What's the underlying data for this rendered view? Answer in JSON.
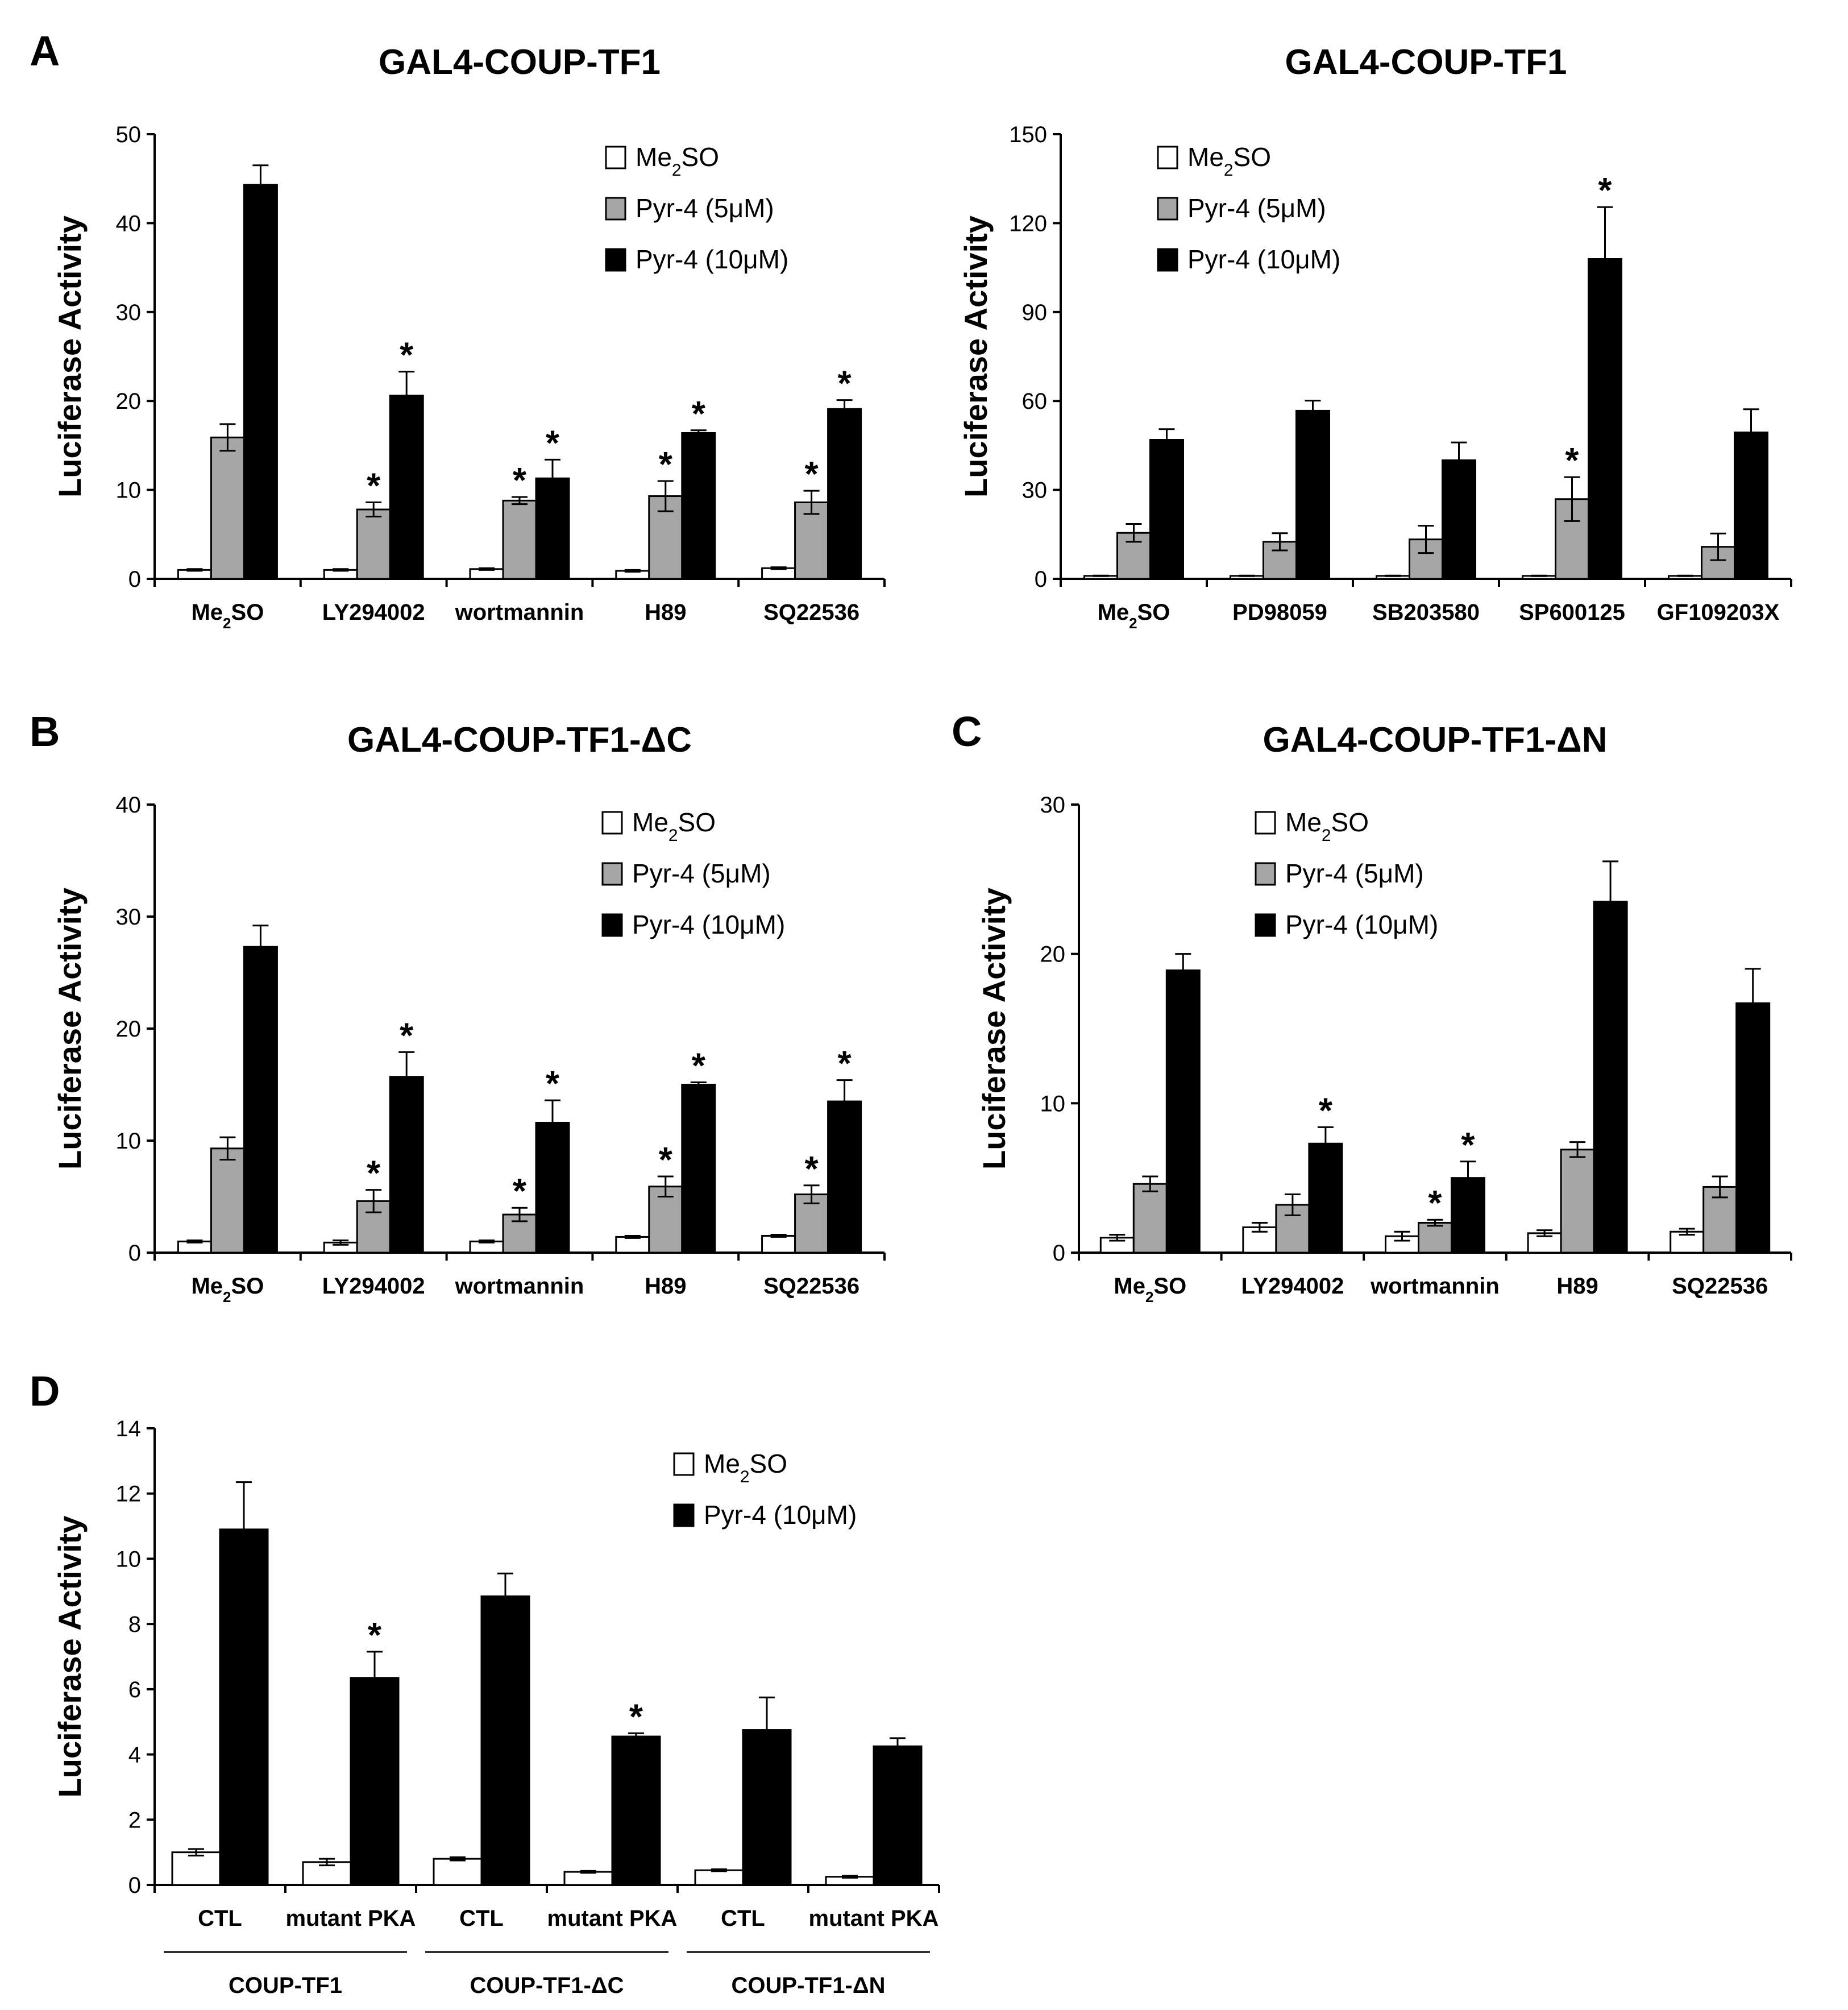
{
  "figure": {
    "colors": {
      "me2so": "#ffffff",
      "pyr5": "#a6a6a6",
      "pyr10": "#000000",
      "stroke": "#000000"
    }
  },
  "chart_data": [
    {
      "id": "A1",
      "type": "bar",
      "panel_letter": "A",
      "title": "GAL4-COUP-TF1",
      "ylabel": "Luciferase Activity",
      "ylim": [
        0,
        50
      ],
      "yticks": [
        0,
        10,
        20,
        30,
        40,
        50
      ],
      "categories": [
        "Me2SO",
        "LY294002",
        "wortmannin",
        "H89",
        "SQ22536"
      ],
      "legend_position": "top-right",
      "series": [
        {
          "name": "Me2SO",
          "values": [
            1.0,
            1.0,
            1.1,
            0.9,
            1.2
          ],
          "errors": [
            0.1,
            0.1,
            0.1,
            0.1,
            0.1
          ]
        },
        {
          "name": "Pyr-4 (5μM)",
          "values": [
            15.9,
            7.8,
            8.8,
            9.3,
            8.6
          ],
          "errors": [
            1.5,
            0.8,
            0.4,
            1.7,
            1.3
          ]
        },
        {
          "name": "Pyr-4 (10μM)",
          "values": [
            44.3,
            20.6,
            11.3,
            16.4,
            19.1
          ],
          "errors": [
            2.2,
            2.7,
            2.1,
            0.3,
            1.0
          ]
        }
      ],
      "significance": [
        {
          "category": 1,
          "series": 1,
          "label": "*"
        },
        {
          "category": 1,
          "series": 2,
          "label": "*"
        },
        {
          "category": 2,
          "series": 1,
          "label": "*"
        },
        {
          "category": 2,
          "series": 2,
          "label": "*"
        },
        {
          "category": 3,
          "series": 1,
          "label": "*"
        },
        {
          "category": 3,
          "series": 2,
          "label": "*"
        },
        {
          "category": 4,
          "series": 1,
          "label": "*"
        },
        {
          "category": 4,
          "series": 2,
          "label": "*"
        }
      ]
    },
    {
      "id": "A2",
      "type": "bar",
      "panel_letter": "",
      "title": "GAL4-COUP-TF1",
      "ylabel": "Luciferase Activity",
      "ylim": [
        0,
        150
      ],
      "yticks": [
        0,
        30,
        60,
        90,
        120,
        150
      ],
      "categories": [
        "Me2SO",
        "PD98059",
        "SB203580",
        "SP600125",
        "GF109203X"
      ],
      "legend_position": "top-left",
      "series": [
        {
          "name": "Me2SO",
          "values": [
            1.0,
            1.0,
            1.0,
            1.0,
            1.0
          ],
          "errors": [
            0.1,
            0.1,
            0.1,
            0.1,
            0.1
          ]
        },
        {
          "name": "Pyr-4 (5μM)",
          "values": [
            15.5,
            12.5,
            13.3,
            26.9,
            10.8
          ],
          "errors": [
            3.0,
            2.9,
            4.6,
            7.4,
            4.5
          ]
        },
        {
          "name": "Pyr-4 (10μM)",
          "values": [
            46.9,
            56.7,
            40.0,
            107.9,
            49.4
          ],
          "errors": [
            3.6,
            3.4,
            6.0,
            17.5,
            7.8
          ]
        }
      ],
      "significance": [
        {
          "category": 3,
          "series": 1,
          "label": "*"
        },
        {
          "category": 3,
          "series": 2,
          "label": "*"
        }
      ]
    },
    {
      "id": "B",
      "type": "bar",
      "panel_letter": "B",
      "title": "GAL4-COUP-TF1-ΔC",
      "ylabel": "Luciferase Activity",
      "ylim": [
        0,
        40
      ],
      "yticks": [
        0,
        10,
        20,
        30,
        40
      ],
      "categories": [
        "Me2SO",
        "LY294002",
        "wortmannin",
        "H89",
        "SQ22536"
      ],
      "legend_position": "top-right",
      "series": [
        {
          "name": "Me2SO",
          "values": [
            1.0,
            0.9,
            1.0,
            1.4,
            1.5
          ],
          "errors": [
            0.1,
            0.2,
            0.1,
            0.1,
            0.1
          ]
        },
        {
          "name": "Pyr-4 (5μM)",
          "values": [
            9.3,
            4.6,
            3.4,
            5.9,
            5.2
          ],
          "errors": [
            1.0,
            1.0,
            0.6,
            0.9,
            0.8
          ]
        },
        {
          "name": "Pyr-4 (10μM)",
          "values": [
            27.3,
            15.7,
            11.6,
            15.0,
            13.5
          ],
          "errors": [
            1.9,
            2.2,
            2.0,
            0.2,
            1.9
          ]
        }
      ],
      "significance": [
        {
          "category": 1,
          "series": 1,
          "label": "*"
        },
        {
          "category": 1,
          "series": 2,
          "label": "*"
        },
        {
          "category": 2,
          "series": 1,
          "label": "*"
        },
        {
          "category": 2,
          "series": 2,
          "label": "*"
        },
        {
          "category": 3,
          "series": 1,
          "label": "*"
        },
        {
          "category": 3,
          "series": 2,
          "label": "*"
        },
        {
          "category": 4,
          "series": 1,
          "label": "*"
        },
        {
          "category": 4,
          "series": 2,
          "label": "*"
        }
      ]
    },
    {
      "id": "C",
      "type": "bar",
      "panel_letter": "C",
      "title": "GAL4-COUP-TF1-ΔN",
      "ylabel": "Luciferase Activity",
      "ylim": [
        0,
        30
      ],
      "yticks": [
        0,
        10,
        20,
        30
      ],
      "categories": [
        "Me2SO",
        "LY294002",
        "wortmannin",
        "H89",
        "SQ22536"
      ],
      "legend_position": "top-left",
      "series": [
        {
          "name": "Me2SO",
          "values": [
            1.0,
            1.7,
            1.1,
            1.3,
            1.4
          ],
          "errors": [
            0.2,
            0.3,
            0.3,
            0.2,
            0.2
          ]
        },
        {
          "name": "Pyr-4 (5μM)",
          "values": [
            4.6,
            3.2,
            2.0,
            6.9,
            4.4
          ],
          "errors": [
            0.5,
            0.7,
            0.2,
            0.5,
            0.7
          ]
        },
        {
          "name": "Pyr-4 (10μM)",
          "values": [
            18.9,
            7.3,
            5.0,
            23.5,
            16.7
          ],
          "errors": [
            1.1,
            1.1,
            1.1,
            2.7,
            2.3
          ]
        }
      ],
      "significance": [
        {
          "category": 1,
          "series": 2,
          "label": "*"
        },
        {
          "category": 2,
          "series": 1,
          "label": "*"
        },
        {
          "category": 2,
          "series": 2,
          "label": "*"
        }
      ]
    },
    {
      "id": "D",
      "type": "bar",
      "panel_letter": "D",
      "title": "",
      "ylabel": "Luciferase Activity",
      "ylim": [
        0,
        14
      ],
      "yticks": [
        0,
        2,
        4,
        6,
        8,
        10,
        12,
        14
      ],
      "categories": [
        "CTL",
        "mutant PKA",
        "CTL",
        "mutant PKA",
        "CTL",
        "mutant PKA"
      ],
      "groups": [
        {
          "label": "COUP-TF1",
          "categories": [
            0,
            1
          ]
        },
        {
          "label": "COUP-TF1-ΔC",
          "categories": [
            2,
            3
          ]
        },
        {
          "label": "COUP-TF1-ΔN",
          "categories": [
            4,
            5
          ]
        }
      ],
      "legend_position": "top-right",
      "series": [
        {
          "name": "Me2SO",
          "values": [
            1.0,
            0.7,
            0.8,
            0.4,
            0.45,
            0.25
          ],
          "errors": [
            0.1,
            0.1,
            0.05,
            0.03,
            0.03,
            0.03
          ]
        },
        {
          "name": "Pyr-4 (10μM)",
          "values": [
            10.9,
            6.35,
            8.85,
            4.55,
            4.75,
            4.25
          ],
          "errors": [
            1.45,
            0.8,
            0.7,
            0.1,
            1.0,
            0.25
          ]
        }
      ],
      "significance": [
        {
          "category": 1,
          "series": 1,
          "label": "*"
        },
        {
          "category": 3,
          "series": 1,
          "label": "*"
        }
      ]
    }
  ]
}
